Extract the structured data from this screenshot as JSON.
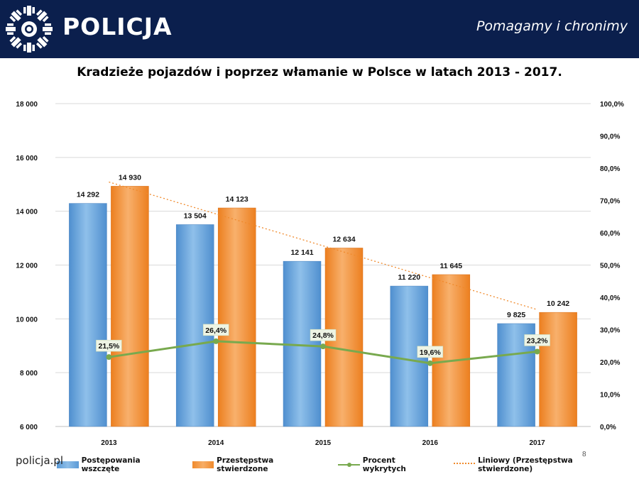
{
  "header": {
    "brand": "POLICJA",
    "slogan": "Pomagamy i chronimy"
  },
  "footer": {
    "site": "policja.pl",
    "page_number": "8"
  },
  "colors": {
    "header_bg": "#0b1f4d",
    "series_blue": "#5b9ad6",
    "series_orange": "#f08a2c",
    "series_green": "#78a94e"
  },
  "icons": {
    "logo": "police-star-icon"
  },
  "chart_data": {
    "type": "bar",
    "title": "Kradzieże pojazdów i poprzez włamanie w Polsce w latach 2013 - 2017.",
    "categories": [
      "2013",
      "2014",
      "2015",
      "2016",
      "2017"
    ],
    "series": [
      {
        "name": "Postępowania wszczęte",
        "type": "bar",
        "axis": "left",
        "values": [
          14292,
          13504,
          12141,
          11220,
          9825
        ],
        "labels": [
          "14 292",
          "13 504",
          "12 141",
          "11 220",
          "9 825"
        ]
      },
      {
        "name": "Przestępstwa stwierdzone",
        "type": "bar",
        "axis": "left",
        "values": [
          14930,
          14123,
          12634,
          11645,
          10242
        ],
        "labels": [
          "14 930",
          "14 123",
          "12 634",
          "11 645",
          "10 242"
        ]
      },
      {
        "name": "Procent wykrytych",
        "type": "line",
        "axis": "right",
        "values": [
          21.5,
          26.4,
          24.8,
          19.6,
          23.2
        ],
        "labels": [
          "21,5%",
          "26,4%",
          "24,8%",
          "19,6%",
          "23,2%"
        ]
      },
      {
        "name": "Liniowy (Przestępstwa stwierdzone)",
        "type": "trendline",
        "axis": "left",
        "of_series": "Przestępstwa stwierdzone"
      }
    ],
    "y_left": {
      "min": 6000,
      "max": 18000,
      "ticks": [
        6000,
        8000,
        10000,
        12000,
        14000,
        16000,
        18000
      ],
      "tick_labels": [
        "6 000",
        "8 000",
        "10 000",
        "12 000",
        "14 000",
        "16 000",
        "18 000"
      ]
    },
    "y_right": {
      "min": 0,
      "max": 100,
      "ticks": [
        0,
        10,
        20,
        30,
        40,
        50,
        60,
        70,
        80,
        90,
        100
      ],
      "tick_labels": [
        "0,0%",
        "10,0%",
        "20,0%",
        "30,0%",
        "40,0%",
        "50,0%",
        "60,0%",
        "70,0%",
        "80,0%",
        "90,0%",
        "100,0%"
      ]
    },
    "grid": true,
    "legend": "bottom"
  }
}
